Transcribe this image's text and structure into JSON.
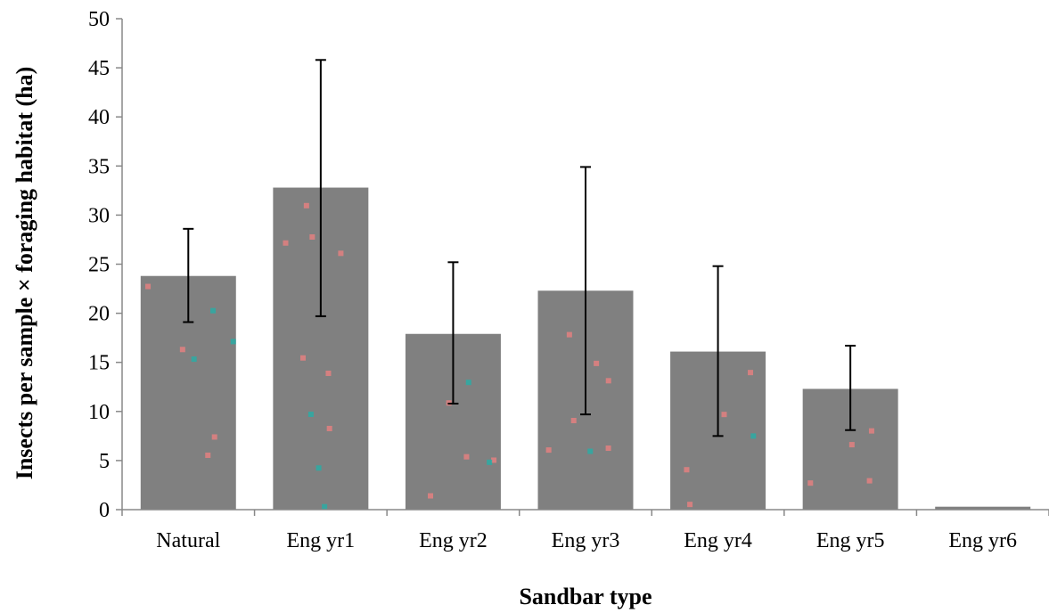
{
  "chart_data": {
    "type": "bar",
    "title": "",
    "xlabel": "Sandbar type",
    "ylabel": "Insects per sample × foraging habitat (ha)",
    "categories": [
      "Natural",
      "Eng yr1",
      "Eng yr2",
      "Eng yr3",
      "Eng yr4",
      "Eng yr5",
      "Eng yr6"
    ],
    "values": [
      23.8,
      32.8,
      17.9,
      22.3,
      16.1,
      12.3,
      0.3
    ],
    "error_bars": {
      "lower": [
        19.1,
        19.7,
        10.8,
        9.7,
        7.5,
        8.1,
        null
      ],
      "upper": [
        28.6,
        45.8,
        25.2,
        34.9,
        24.8,
        16.7,
        null
      ]
    },
    "ylim": [
      0,
      50
    ],
    "yticks": [
      0,
      5,
      10,
      15,
      20,
      25,
      30,
      35,
      40,
      45,
      50
    ],
    "grid": false,
    "legend": "none",
    "bar_color": "#808080",
    "speckle_colors": [
      "#f08080",
      "#20b2aa"
    ]
  }
}
